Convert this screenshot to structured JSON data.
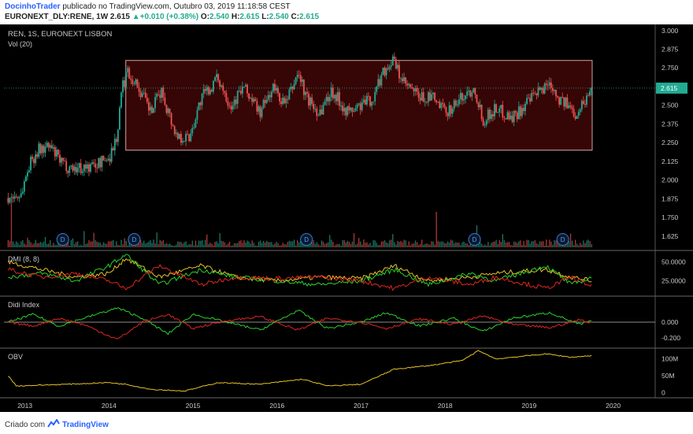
{
  "header": {
    "author": "DocinhoTrader",
    "published": "publicado no TradingView.com, Outubro 03, 2019 11:18:58 CEST",
    "symbol": "EURONEXT_DLY:RENE, 1W",
    "last": "2.615",
    "change": "+0.010 (+0.38%)",
    "open_label": "O:",
    "open": "2.540",
    "high_label": "H:",
    "high": "2.615",
    "low_label": "L:",
    "low": "2.540",
    "close_label": "C:",
    "close": "2.615"
  },
  "footer": {
    "created_with": "Criado com",
    "brand": "TradingView"
  },
  "colors": {
    "up": "#22ab94",
    "down": "#ef5350",
    "range_box": "#d8a0a0",
    "price_line": "#22ab94",
    "yellow": "#e6c229",
    "green": "#2bd12b",
    "red": "#e0261f"
  },
  "chart_data": [
    {
      "type": "candlestick",
      "title": "REN, 1S, EURONEXT LISBON",
      "subtitle": "Vol (20)",
      "ylim": [
        1.55,
        3.02
      ],
      "y_ticks": [
        "3.000",
        "2.875",
        "2.750",
        "2.625",
        "2.500",
        "2.375",
        "2.250",
        "2.125",
        "2.000",
        "1.875",
        "1.750",
        "1.625"
      ],
      "x_ticks": [
        "2013",
        "2014",
        "2015",
        "2016",
        "2017",
        "2018",
        "2019",
        "2020"
      ],
      "last_price_label": "2.615",
      "last_price": 2.615,
      "range_box": {
        "x_start": 2014.2,
        "x_end": 2019.75,
        "y_low": 2.2,
        "y_high": 2.8
      },
      "dividend_marker": "D",
      "dividends": [
        2013.45,
        2014.3,
        2016.35,
        2018.35,
        2019.4
      ],
      "x_range": [
        2012.75,
        2020.5
      ],
      "anchors": [
        [
          2012.8,
          1.88
        ],
        [
          2012.95,
          1.9
        ],
        [
          2013.05,
          2.1
        ],
        [
          2013.15,
          2.2
        ],
        [
          2013.3,
          2.22
        ],
        [
          2013.45,
          2.1
        ],
        [
          2013.6,
          2.08
        ],
        [
          2013.8,
          2.09
        ],
        [
          2014.0,
          2.15
        ],
        [
          2014.1,
          2.3
        ],
        [
          2014.15,
          2.6
        ],
        [
          2014.22,
          2.73
        ],
        [
          2014.35,
          2.62
        ],
        [
          2014.5,
          2.45
        ],
        [
          2014.62,
          2.6
        ],
        [
          2014.8,
          2.3
        ],
        [
          2014.95,
          2.28
        ],
        [
          2015.1,
          2.55
        ],
        [
          2015.3,
          2.68
        ],
        [
          2015.45,
          2.5
        ],
        [
          2015.6,
          2.62
        ],
        [
          2015.8,
          2.45
        ],
        [
          2015.95,
          2.62
        ],
        [
          2016.1,
          2.5
        ],
        [
          2016.25,
          2.72
        ],
        [
          2016.35,
          2.55
        ],
        [
          2016.5,
          2.45
        ],
        [
          2016.65,
          2.6
        ],
        [
          2016.85,
          2.45
        ],
        [
          2017.0,
          2.5
        ],
        [
          2017.15,
          2.55
        ],
        [
          2017.25,
          2.72
        ],
        [
          2017.38,
          2.8
        ],
        [
          2017.5,
          2.65
        ],
        [
          2017.7,
          2.55
        ],
        [
          2017.85,
          2.55
        ],
        [
          2018.0,
          2.45
        ],
        [
          2018.2,
          2.55
        ],
        [
          2018.35,
          2.62
        ],
        [
          2018.45,
          2.4
        ],
        [
          2018.6,
          2.48
        ],
        [
          2018.8,
          2.42
        ],
        [
          2018.95,
          2.5
        ],
        [
          2019.1,
          2.58
        ],
        [
          2019.25,
          2.66
        ],
        [
          2019.35,
          2.55
        ],
        [
          2019.55,
          2.45
        ],
        [
          2019.65,
          2.52
        ],
        [
          2019.75,
          2.615
        ]
      ]
    },
    {
      "type": "line",
      "title": "DMI (8, 8)",
      "ylim": [
        8,
        62
      ],
      "y_ticks": [
        "50.0000",
        "25.0000"
      ],
      "tick_values": [
        50,
        25
      ],
      "series": [
        {
          "color_key": "yellow",
          "points": [
            [
              2012.8,
              50
            ],
            [
              2013.2,
              40
            ],
            [
              2013.6,
              30
            ],
            [
              2014.0,
              35
            ],
            [
              2014.2,
              55
            ],
            [
              2014.6,
              30
            ],
            [
              2015.1,
              45
            ],
            [
              2015.5,
              30
            ],
            [
              2016.0,
              25
            ],
            [
              2016.5,
              30
            ],
            [
              2017.0,
              28
            ],
            [
              2017.4,
              45
            ],
            [
              2017.8,
              25
            ],
            [
              2018.3,
              30
            ],
            [
              2018.6,
              35
            ],
            [
              2019.2,
              40
            ],
            [
              2019.5,
              30
            ],
            [
              2019.75,
              25
            ]
          ]
        },
        {
          "color_key": "green",
          "points": [
            [
              2012.8,
              30
            ],
            [
              2013.2,
              35
            ],
            [
              2013.6,
              25
            ],
            [
              2014.0,
              45
            ],
            [
              2014.2,
              60
            ],
            [
              2014.6,
              20
            ],
            [
              2015.1,
              40
            ],
            [
              2015.5,
              30
            ],
            [
              2016.0,
              25
            ],
            [
              2016.5,
              20
            ],
            [
              2017.0,
              25
            ],
            [
              2017.4,
              40
            ],
            [
              2017.8,
              20
            ],
            [
              2018.3,
              35
            ],
            [
              2018.6,
              25
            ],
            [
              2019.2,
              45
            ],
            [
              2019.5,
              20
            ],
            [
              2019.75,
              30
            ]
          ]
        },
        {
          "color_key": "red",
          "points": [
            [
              2012.8,
              40
            ],
            [
              2013.2,
              30
            ],
            [
              2013.6,
              35
            ],
            [
              2014.0,
              25
            ],
            [
              2014.2,
              15
            ],
            [
              2014.6,
              45
            ],
            [
              2015.1,
              20
            ],
            [
              2015.5,
              30
            ],
            [
              2016.0,
              28
            ],
            [
              2016.5,
              30
            ],
            [
              2017.0,
              25
            ],
            [
              2017.4,
              15
            ],
            [
              2017.8,
              30
            ],
            [
              2018.3,
              20
            ],
            [
              2018.6,
              30
            ],
            [
              2019.2,
              15
            ],
            [
              2019.5,
              30
            ],
            [
              2019.75,
              18
            ]
          ]
        }
      ]
    },
    {
      "type": "line",
      "title": "Didi Index",
      "ylim": [
        -0.3,
        0.3
      ],
      "y_ticks": [
        "0.000",
        "-0.200"
      ],
      "tick_values": [
        0.0,
        -0.2
      ],
      "zero_line": 0,
      "series": [
        {
          "color_key": "green",
          "points": [
            [
              2012.8,
              0
            ],
            [
              2013.1,
              0.1
            ],
            [
              2013.4,
              -0.05
            ],
            [
              2013.7,
              0.05
            ],
            [
              2014.1,
              0.18
            ],
            [
              2014.4,
              0.05
            ],
            [
              2014.7,
              -0.15
            ],
            [
              2015.0,
              0.1
            ],
            [
              2015.4,
              0.0
            ],
            [
              2015.8,
              -0.1
            ],
            [
              2016.25,
              0.15
            ],
            [
              2016.6,
              -0.08
            ],
            [
              2017.0,
              0.0
            ],
            [
              2017.3,
              0.12
            ],
            [
              2017.7,
              -0.05
            ],
            [
              2018.1,
              0.05
            ],
            [
              2018.45,
              -0.12
            ],
            [
              2018.8,
              0.05
            ],
            [
              2019.25,
              0.12
            ],
            [
              2019.6,
              -0.03
            ],
            [
              2019.75,
              0.02
            ]
          ]
        },
        {
          "color_key": "red",
          "points": [
            [
              2012.8,
              0
            ],
            [
              2013.1,
              -0.05
            ],
            [
              2013.4,
              0.05
            ],
            [
              2013.7,
              -0.03
            ],
            [
              2014.1,
              -0.22
            ],
            [
              2014.4,
              0.0
            ],
            [
              2014.7,
              0.1
            ],
            [
              2015.0,
              -0.08
            ],
            [
              2015.4,
              0.02
            ],
            [
              2015.8,
              0.07
            ],
            [
              2016.25,
              -0.1
            ],
            [
              2016.6,
              0.05
            ],
            [
              2017.0,
              0.0
            ],
            [
              2017.3,
              -0.08
            ],
            [
              2017.7,
              0.04
            ],
            [
              2018.1,
              -0.03
            ],
            [
              2018.45,
              0.08
            ],
            [
              2018.8,
              -0.03
            ],
            [
              2019.25,
              -0.07
            ],
            [
              2019.6,
              0.03
            ],
            [
              2019.75,
              -0.01
            ]
          ]
        }
      ]
    },
    {
      "type": "line",
      "title": "OBV",
      "ylim": [
        -8,
        125
      ],
      "y_ticks": [
        "100M",
        "50M",
        "0"
      ],
      "tick_values": [
        100,
        50,
        0
      ],
      "series": [
        {
          "color_key": "yellow",
          "points": [
            [
              2012.8,
              50
            ],
            [
              2012.9,
              20
            ],
            [
              2013.5,
              25
            ],
            [
              2014.0,
              30
            ],
            [
              2014.2,
              25
            ],
            [
              2014.5,
              10
            ],
            [
              2014.9,
              5
            ],
            [
              2015.3,
              30
            ],
            [
              2015.8,
              25
            ],
            [
              2016.3,
              40
            ],
            [
              2016.6,
              20
            ],
            [
              2017.0,
              25
            ],
            [
              2017.4,
              70
            ],
            [
              2017.8,
              80
            ],
            [
              2018.2,
              95
            ],
            [
              2018.4,
              125
            ],
            [
              2018.6,
              100
            ],
            [
              2019.0,
              110
            ],
            [
              2019.2,
              115
            ],
            [
              2019.5,
              105
            ],
            [
              2019.75,
              110
            ]
          ]
        }
      ]
    }
  ]
}
